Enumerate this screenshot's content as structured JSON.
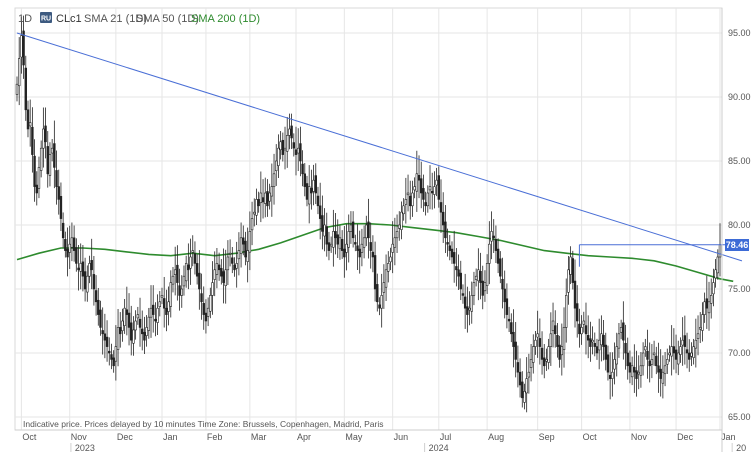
{
  "header": {
    "interval": "1D",
    "symbol_badge": "RU",
    "symbol": "CLc1",
    "indicators": [
      {
        "label": "SMA 21 (1D)",
        "color": "#555555"
      },
      {
        "label": "SMA 50 (1D)",
        "color": "#555555"
      },
      {
        "label": "SMA 200 (1D)",
        "color": "#2e8b2e"
      }
    ]
  },
  "footer_note": "Indicative price. Prices delayed by 10 minutes   Time Zone: Brussels, Copenhagen, Madrid, Paris",
  "chart_data": {
    "type": "candlestick",
    "ylim": [
      64.0,
      96.0
    ],
    "y_ticks": [
      "95.00",
      "90.00",
      "85.00",
      "80.00",
      "75.00",
      "70.00",
      "65.00"
    ],
    "y_tick_values": [
      95,
      90,
      85,
      80,
      75,
      70,
      65
    ],
    "x_months": [
      {
        "label": "Oct",
        "i": 2
      },
      {
        "label": "Nov",
        "i": 24
      },
      {
        "label": "Dec",
        "i": 45
      },
      {
        "label": "Jan",
        "i": 66
      },
      {
        "label": "Feb",
        "i": 86
      },
      {
        "label": "Mar",
        "i": 106
      },
      {
        "label": "Apr",
        "i": 127
      },
      {
        "label": "May",
        "i": 149
      },
      {
        "label": "Jun",
        "i": 171
      },
      {
        "label": "Jul",
        "i": 192
      },
      {
        "label": "Aug",
        "i": 214
      },
      {
        "label": "Sep",
        "i": 237
      },
      {
        "label": "Oct",
        "i": 257
      },
      {
        "label": "Nov",
        "i": 279
      },
      {
        "label": "Dec",
        "i": 300
      },
      {
        "label": "Jan",
        "i": 320
      }
    ],
    "years": [
      {
        "label": "2023",
        "i": 30
      },
      {
        "label": "2024",
        "i": 191
      },
      {
        "label": "20",
        "i": 331
      }
    ],
    "last_price": 78.46,
    "last_price_label": "78.46",
    "closes": [
      91.0,
      93.0,
      94.8,
      92.5,
      89.0,
      87.5,
      88.0,
      85.5,
      83.0,
      82.5,
      84.5,
      86.0,
      87.5,
      86.5,
      84.0,
      85.5,
      86.0,
      84.5,
      83.0,
      82.0,
      80.5,
      79.0,
      78.0,
      77.5,
      78.5,
      79.0,
      78.0,
      77.0,
      76.5,
      77.0,
      76.0,
      75.0,
      76.0,
      77.0,
      76.5,
      75.0,
      74.0,
      73.0,
      72.0,
      71.5,
      71.0,
      70.5,
      70.0,
      69.5,
      69.0,
      70.5,
      72.0,
      71.5,
      72.5,
      73.5,
      73.0,
      72.0,
      71.0,
      71.8,
      72.5,
      73.0,
      72.0,
      71.5,
      71.0,
      72.0,
      72.8,
      73.5,
      73.0,
      72.5,
      73.5,
      74.0,
      74.5,
      73.5,
      73.0,
      74.0,
      75.5,
      76.0,
      76.5,
      75.5,
      74.5,
      75.0,
      76.0,
      77.0,
      76.5,
      77.5,
      78.0,
      77.0,
      76.0,
      75.0,
      74.0,
      73.0,
      72.5,
      73.5,
      74.5,
      75.5,
      76.5,
      77.0,
      76.5,
      76.0,
      75.5,
      76.5,
      77.5,
      77.8,
      77.0,
      76.5,
      77.0,
      78.0,
      79.0,
      78.5,
      77.5,
      78.0,
      79.5,
      80.5,
      81.0,
      82.0,
      81.5,
      82.5,
      81.8,
      82.5,
      81.5,
      82.5,
      83.0,
      84.0,
      85.0,
      86.0,
      86.5,
      85.5,
      86.0,
      87.0,
      87.5,
      86.8,
      86.0,
      85.5,
      86.0,
      85.0,
      84.0,
      83.0,
      82.0,
      83.0,
      82.5,
      83.5,
      82.5,
      81.5,
      80.5,
      79.5,
      80.0,
      78.5,
      78.0,
      78.5,
      79.5,
      79.0,
      78.5,
      79.0,
      78.0,
      77.5,
      78.5,
      79.5,
      80.0,
      79.0,
      78.5,
      78.0,
      77.5,
      78.5,
      79.0,
      80.0,
      79.0,
      78.0,
      77.5,
      75.0,
      74.0,
      73.5,
      74.5,
      75.5,
      76.5,
      77.0,
      77.5,
      78.5,
      79.0,
      79.5,
      80.0,
      81.0,
      81.5,
      82.0,
      82.5,
      81.5,
      82.5,
      83.0,
      84.0,
      83.5,
      82.5,
      82.0,
      81.5,
      82.5,
      83.0,
      82.5,
      83.0,
      83.5,
      82.0,
      81.0,
      80.0,
      79.0,
      78.5,
      78.0,
      77.5,
      77.0,
      76.5,
      76.0,
      75.0,
      74.5,
      73.5,
      73.0,
      73.5,
      74.5,
      75.5,
      76.0,
      76.5,
      75.5,
      74.5,
      75.5,
      77.0,
      78.5,
      79.5,
      79.0,
      78.0,
      77.0,
      76.0,
      75.0,
      74.0,
      73.0,
      72.5,
      71.5,
      70.5,
      69.5,
      68.5,
      67.5,
      66.5,
      67.0,
      68.0,
      68.5,
      69.5,
      70.5,
      71.0,
      71.5,
      70.5,
      69.5,
      69.0,
      69.5,
      70.5,
      71.5,
      72.5,
      71.5,
      70.5,
      69.5,
      70.5,
      72.0,
      74.5,
      76.5,
      77.5,
      75.5,
      73.5,
      72.5,
      71.5,
      72.0,
      72.5,
      71.5,
      71.0,
      70.5,
      71.0,
      70.5,
      70.0,
      71.0,
      71.5,
      70.5,
      69.5,
      68.5,
      68.0,
      68.5,
      69.5,
      70.5,
      71.5,
      72.0,
      71.0,
      70.0,
      69.0,
      68.5,
      69.0,
      68.5,
      68.0,
      68.5,
      69.0,
      70.0,
      70.5,
      69.5,
      69.0,
      69.5,
      70.0,
      69.0,
      68.5,
      68.0,
      68.5,
      69.0,
      69.5,
      70.0,
      70.5,
      70.0,
      69.5,
      70.0,
      70.5,
      71.0,
      70.5,
      70.0,
      69.5,
      70.0,
      70.5,
      71.0,
      71.5,
      72.0,
      73.0,
      74.0,
      73.5,
      74.0,
      74.5,
      75.5,
      76.5,
      77.5,
      78.46
    ],
    "sma200": [
      [
        0,
        77.3
      ],
      [
        10,
        77.8
      ],
      [
        20,
        78.2
      ],
      [
        30,
        78.2
      ],
      [
        40,
        78.1
      ],
      [
        50,
        77.9
      ],
      [
        60,
        77.7
      ],
      [
        70,
        77.6
      ],
      [
        80,
        77.8
      ],
      [
        90,
        77.6
      ],
      [
        100,
        77.8
      ],
      [
        110,
        78.1
      ],
      [
        120,
        78.6
      ],
      [
        130,
        79.2
      ],
      [
        140,
        79.8
      ],
      [
        150,
        80.1
      ],
      [
        160,
        80.1
      ],
      [
        170,
        80.0
      ],
      [
        180,
        79.8
      ],
      [
        190,
        79.6
      ],
      [
        200,
        79.4
      ],
      [
        210,
        79.1
      ],
      [
        220,
        78.8
      ],
      [
        230,
        78.4
      ],
      [
        240,
        78.0
      ],
      [
        250,
        77.8
      ],
      [
        260,
        77.6
      ],
      [
        270,
        77.5
      ],
      [
        280,
        77.4
      ],
      [
        290,
        77.2
      ],
      [
        300,
        76.8
      ],
      [
        310,
        76.3
      ],
      [
        320,
        75.8
      ],
      [
        326,
        75.6
      ]
    ],
    "trendline": [
      [
        0,
        95.0
      ],
      [
        330,
        77.2
      ]
    ],
    "resistance": [
      [
        256,
        78.46
      ],
      [
        331,
        78.46
      ]
    ]
  }
}
